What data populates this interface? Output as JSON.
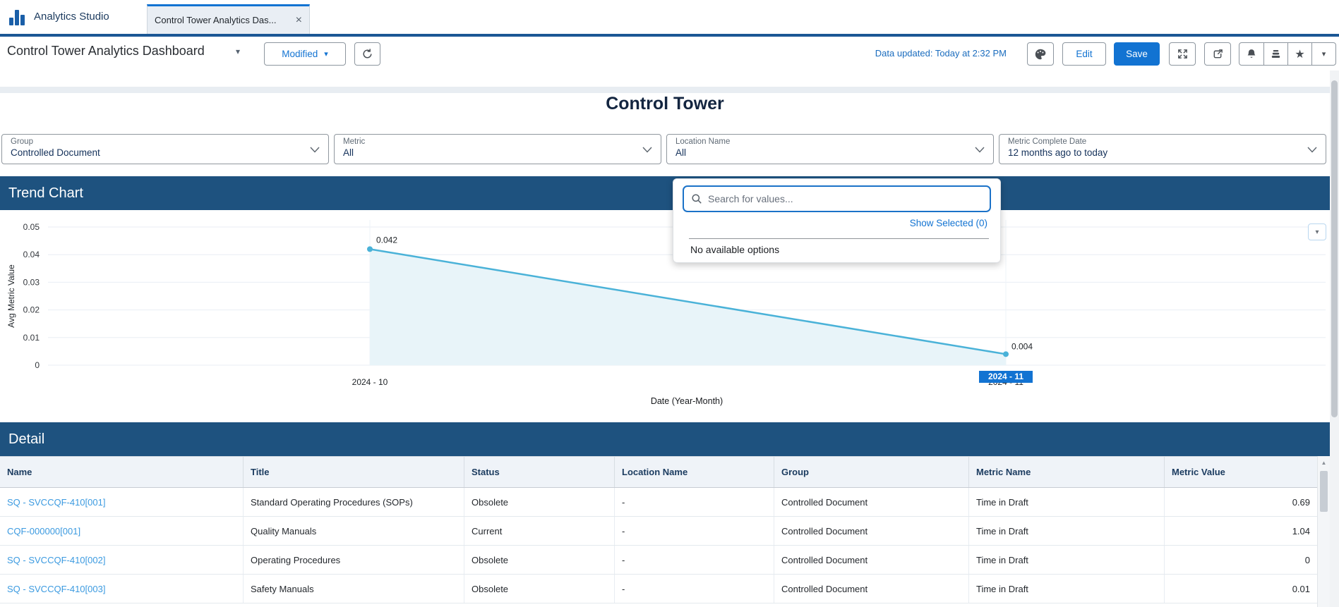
{
  "app": {
    "name": "Analytics Studio",
    "tab": {
      "label": "Control Tower Analytics Das..."
    }
  },
  "icons": {
    "close": "×",
    "caret_down": "▾",
    "star": "★",
    "scroll_up": "▲"
  },
  "toolbar": {
    "title": "Control Tower Analytics Dashboard",
    "status_button": "Modified",
    "data_updated": "Data updated: Today at 2:32 PM",
    "edit_label": "Edit",
    "save_label": "Save"
  },
  "dashboard": {
    "title": "Control Tower"
  },
  "filters": [
    {
      "label": "Group",
      "value": "Controlled Document"
    },
    {
      "label": "Metric",
      "value": "All"
    },
    {
      "label": "Location Name",
      "value": "All"
    },
    {
      "label": "Metric Complete Date",
      "value": "12 months ago to today"
    }
  ],
  "dropdown_panel": {
    "search_placeholder": "Search for values...",
    "show_selected": "Show Selected (0)",
    "empty_message": "No available options"
  },
  "trend_section": {
    "title": "Trend Chart"
  },
  "chart_data": {
    "type": "line",
    "title": "Trend Chart",
    "x": [
      "2024 - 10",
      "2024 - 11"
    ],
    "values": [
      0.042,
      0.004
    ],
    "point_labels": [
      "0.042",
      "0.004"
    ],
    "selected_x": "2024 - 11",
    "xlabel": "Date (Year-Month)",
    "ylabel": "Avg Metric Value",
    "ylim": [
      0,
      0.05
    ],
    "yticks": [
      0,
      0.01,
      0.02,
      0.03,
      0.04,
      0.05
    ],
    "grid": true,
    "legend": false,
    "line_color": "#4ab2d8",
    "fill_color": "#e8f4f9",
    "selected_badge_color": "#1273d2"
  },
  "detail_section": {
    "title": "Detail",
    "table": {
      "columns": [
        "Name",
        "Title",
        "Status",
        "Location Name",
        "Group",
        "Metric Name",
        "Metric Value"
      ],
      "rows": [
        [
          "SQ - SVCCQF-410[001]",
          "Standard Operating Procedures (SOPs)",
          "Obsolete",
          "-",
          "Controlled Document",
          "Time in Draft",
          "0.69"
        ],
        [
          "CQF-000000[001]",
          "Quality Manuals",
          "Current",
          "-",
          "Controlled Document",
          "Time in Draft",
          "1.04"
        ],
        [
          "SQ - SVCCQF-410[002]",
          "Operating Procedures",
          "Obsolete",
          "-",
          "Controlled Document",
          "Time in Draft",
          "0"
        ],
        [
          "SQ - SVCCQF-410[003]",
          "Safety Manuals",
          "Obsolete",
          "-",
          "Controlled Document",
          "Time in Draft",
          "0.01"
        ]
      ]
    }
  },
  "colors": {
    "accent": "#1273d2",
    "section_header": "#1e527f",
    "link": "#3b9ae0",
    "tab_divider": "#1b5795"
  }
}
